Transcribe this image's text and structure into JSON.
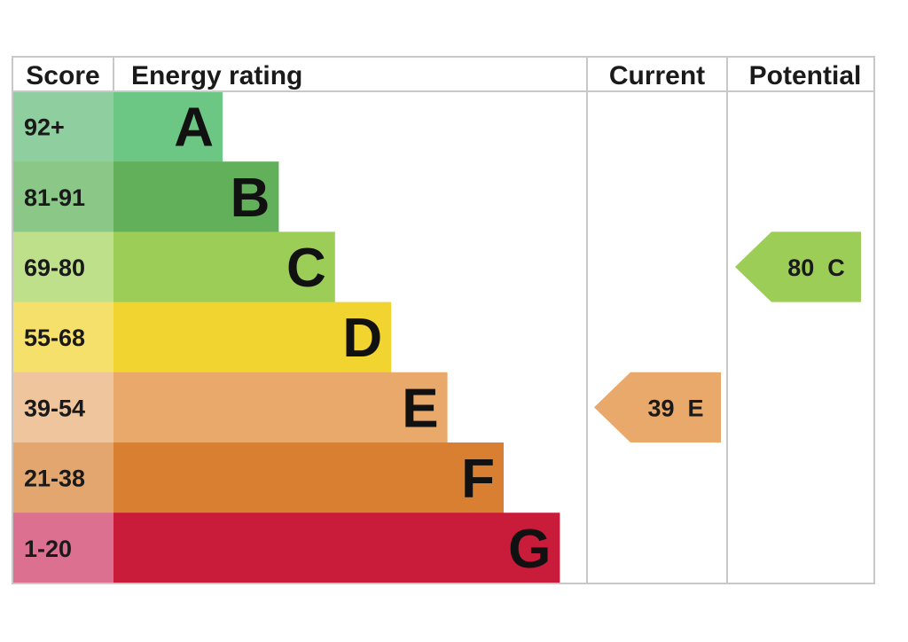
{
  "chart_data": {
    "type": "bar",
    "headers": {
      "score": "Score",
      "energy_rating": "Energy rating",
      "current": "Current",
      "potential": "Potential"
    },
    "bands": [
      {
        "letter": "A",
        "range": "92+",
        "bar_color": "#6cc784",
        "score_color": "#8fcf9f"
      },
      {
        "letter": "B",
        "range": "81-91",
        "bar_color": "#63b05b",
        "score_color": "#8bc888"
      },
      {
        "letter": "C",
        "range": "69-80",
        "bar_color": "#9ccd57",
        "score_color": "#bfe08a"
      },
      {
        "letter": "D",
        "range": "55-68",
        "bar_color": "#f2d430",
        "score_color": "#f6e06c"
      },
      {
        "letter": "E",
        "range": "39-54",
        "bar_color": "#e8a96a",
        "score_color": "#eec59c"
      },
      {
        "letter": "F",
        "range": "21-38",
        "bar_color": "#d87f31",
        "score_color": "#e3a66f"
      },
      {
        "letter": "G",
        "range": "1-20",
        "bar_color": "#c91c3b",
        "score_color": "#dc7090"
      }
    ],
    "current": {
      "value": 39,
      "band": "E",
      "label": "39  E",
      "color": "#e8a96a"
    },
    "potential": {
      "value": 80,
      "band": "C",
      "label": "80  C",
      "color": "#9ccd57"
    }
  }
}
